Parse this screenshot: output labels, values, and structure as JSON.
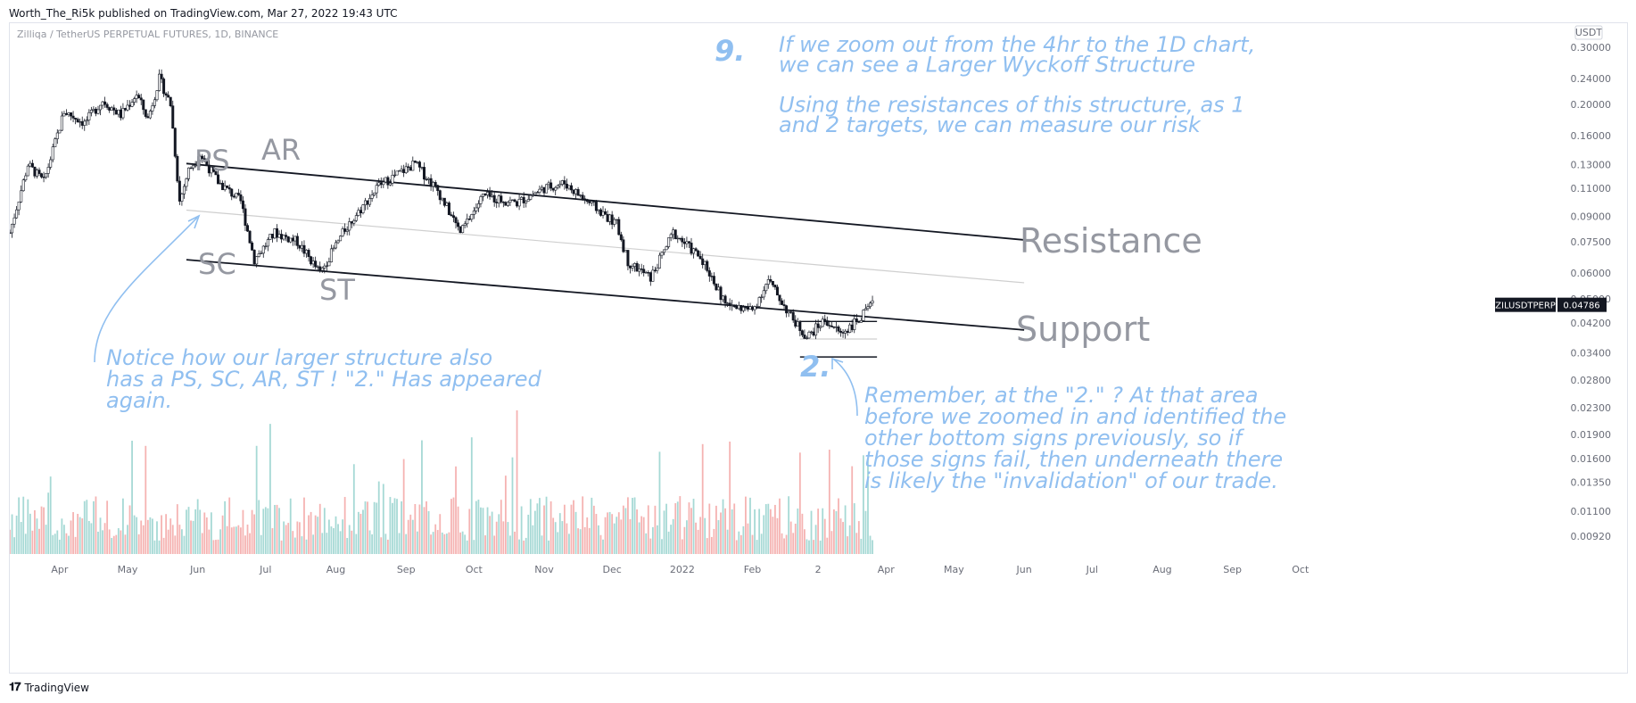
{
  "header": {
    "published": "Worth_The_Ri5k published on TradingView.com, Mar 27, 2022 19:43 UTC"
  },
  "footer": {
    "brand": "TradingView"
  },
  "chart_data": {
    "type": "candlestick",
    "symbol_title": "Zilliqa / TetherUS PERPETUAL FUTURES, 1D, BINANCE",
    "currency": "USDT",
    "price_scale": "log",
    "yaxis_ticks": [
      "0.30000",
      "0.24000",
      "0.20000",
      "0.16000",
      "0.13000",
      "0.11000",
      "0.09000",
      "0.07500",
      "0.06000",
      "0.05000",
      "0.04200",
      "0.03400",
      "0.02800",
      "0.02300",
      "0.01900",
      "0.01600",
      "0.01350",
      "0.01100",
      "0.00920"
    ],
    "xaxis_ticks": [
      "2",
      "Apr",
      "May",
      "Jun",
      "Jul",
      "Aug",
      "Sep",
      "Oct",
      "Nov",
      "Dec",
      "2022",
      "Feb",
      "2",
      "Apr",
      "May",
      "Jun",
      "Jul",
      "Aug",
      "Sep",
      "Oct"
    ],
    "last_price": {
      "label": "ZILUSDTPERP",
      "value": "0.04786",
      "color": "#131722"
    },
    "colors": {
      "up": "#26a69a",
      "down": "#ef5350",
      "volume_up": "#a6d9d5",
      "volume_down": "#f5b3b2",
      "annotation": "#90bff0",
      "structure_label": "#9598a1"
    },
    "price_path": [
      [
        "2021-03-10",
        0.08
      ],
      [
        "2021-03-18",
        0.13
      ],
      [
        "2021-03-25",
        0.115
      ],
      [
        "2021-04-03",
        0.19
      ],
      [
        "2021-04-12",
        0.175
      ],
      [
        "2021-04-20",
        0.205
      ],
      [
        "2021-04-28",
        0.185
      ],
      [
        "2021-05-05",
        0.215
      ],
      [
        "2021-05-10",
        0.18
      ],
      [
        "2021-05-15",
        0.24
      ],
      [
        "2021-05-20",
        0.2
      ],
      [
        "2021-05-24",
        0.1
      ],
      [
        "2021-05-28",
        0.125
      ],
      [
        "2021-06-02",
        0.14
      ],
      [
        "2021-06-10",
        0.115
      ],
      [
        "2021-06-20",
        0.1
      ],
      [
        "2021-06-26",
        0.066
      ],
      [
        "2021-07-05",
        0.08
      ],
      [
        "2021-07-15",
        0.075
      ],
      [
        "2021-07-25",
        0.06
      ],
      [
        "2021-08-05",
        0.082
      ],
      [
        "2021-08-20",
        0.112
      ],
      [
        "2021-09-05",
        0.131
      ],
      [
        "2021-09-15",
        0.108
      ],
      [
        "2021-09-25",
        0.08
      ],
      [
        "2021-10-05",
        0.104
      ],
      [
        "2021-10-20",
        0.099
      ],
      [
        "2021-11-01",
        0.11
      ],
      [
        "2021-11-10",
        0.114
      ],
      [
        "2021-11-20",
        0.1
      ],
      [
        "2021-12-03",
        0.085
      ],
      [
        "2021-12-08",
        0.065
      ],
      [
        "2021-12-18",
        0.058
      ],
      [
        "2021-12-28",
        0.08
      ],
      [
        "2022-01-10",
        0.066
      ],
      [
        "2022-01-20",
        0.048
      ],
      [
        "2022-02-01",
        0.046
      ],
      [
        "2022-02-08",
        0.057
      ],
      [
        "2022-02-18",
        0.044
      ],
      [
        "2022-02-25",
        0.038
      ],
      [
        "2022-03-05",
        0.043
      ],
      [
        "2022-03-12",
        0.039
      ],
      [
        "2022-03-20",
        0.043
      ],
      [
        "2022-03-26",
        0.04786
      ]
    ],
    "trendlines": [
      {
        "name": "Resistance",
        "from": [
          "2021-05-27",
          0.131
        ],
        "to": [
          "2022-06-01",
          0.076
        ]
      },
      {
        "name": "Support",
        "from": [
          "2021-05-27",
          0.066
        ],
        "to": [
          "2022-06-01",
          0.04
        ]
      },
      {
        "name": "Midline",
        "from": [
          "2021-05-27",
          0.094
        ],
        "to": [
          "2022-06-01",
          0.056
        ]
      }
    ],
    "structure_labels": [
      "PS",
      "AR",
      "SC",
      "ST",
      "Resistance",
      "Support"
    ],
    "annotations": {
      "num9": "9.",
      "top_note": [
        "If we zoom out from the 4hr to the 1D chart,",
        "we can see a Larger Wyckoff Structure",
        "",
        "Using the resistances of this structure, as 1",
        "and 2 targets, we can measure our risk"
      ],
      "left_note": [
        "Notice how our larger structure also",
        "has a PS, SC, AR, ST ! \"2.\" Has appeared",
        "again."
      ],
      "num2": "2.",
      "right_note": [
        "Remember, at the \"2.\" ? At that area",
        "before we zoomed in and identified the",
        "other bottom signs previously, so if",
        "those signs fail, then underneath there",
        "is likely the \"invalidation\" of our trade."
      ]
    }
  }
}
